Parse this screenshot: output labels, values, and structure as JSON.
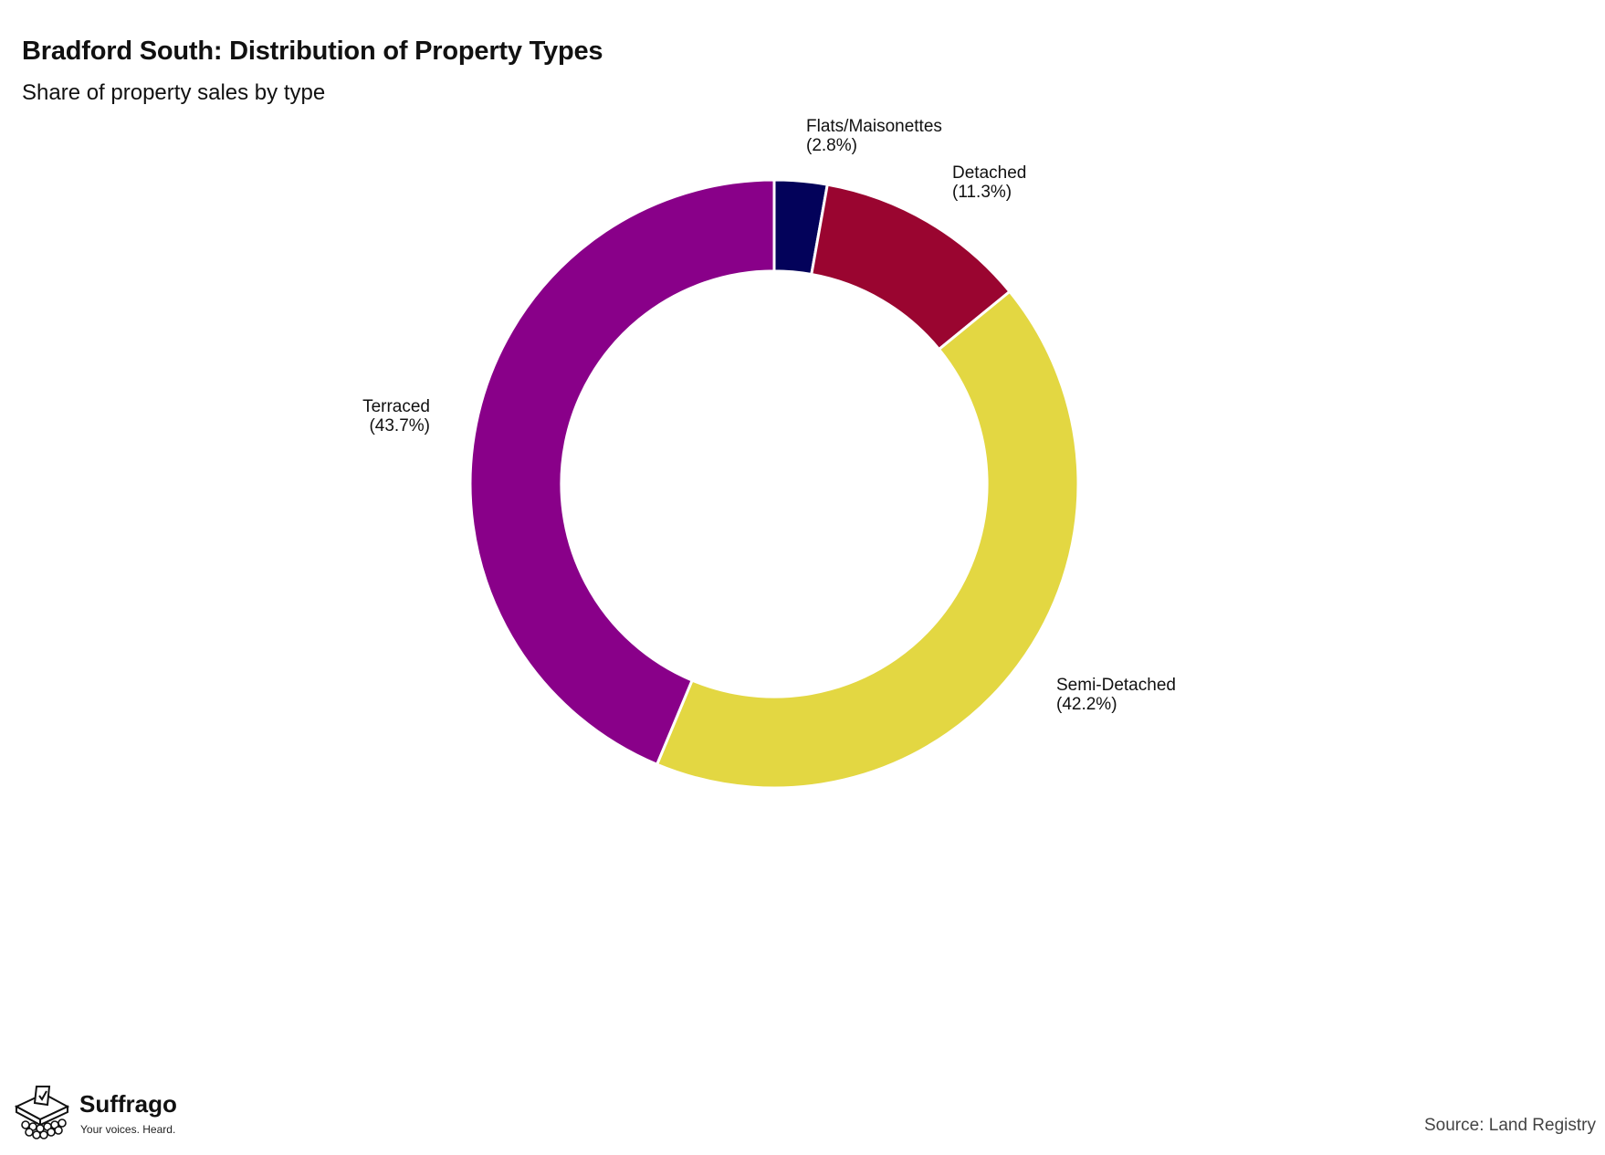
{
  "chart_data": {
    "type": "pie",
    "title": "Bradford South: Distribution of Property Types",
    "subtitle": "Share of property sales by type",
    "hole": 0.7,
    "start_angle_deg": 0,
    "direction": "clockwise",
    "slices": [
      {
        "label": "Flats/Maisonettes",
        "value": 2.8,
        "display": "(2.8%)",
        "color": "#03025a"
      },
      {
        "label": "Detached",
        "value": 11.3,
        "display": "(11.3%)",
        "color": "#9a0530"
      },
      {
        "label": "Semi-Detached",
        "value": 42.2,
        "display": "(42.2%)",
        "color": "#e3d742"
      },
      {
        "label": "Terraced",
        "value": 43.7,
        "display": "(43.7%)",
        "color": "#890089"
      }
    ]
  },
  "footer": {
    "brand_name": "Suffrago",
    "brand_tagline": "Your voices. Heard.",
    "source": "Source: Land Registry"
  }
}
